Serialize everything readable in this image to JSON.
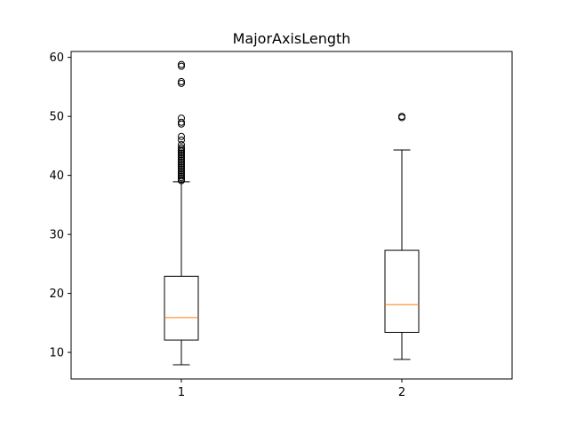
{
  "chart_data": {
    "type": "box",
    "title": "MajorAxisLength",
    "xlabel": "",
    "ylabel": "",
    "categories": [
      "1",
      "2"
    ],
    "ylim": [
      5.5,
      61
    ],
    "yticks": [
      10,
      20,
      30,
      40,
      50,
      60
    ],
    "grid": false,
    "boxes": [
      {
        "category": "1",
        "whisker_low": 7.9,
        "q1": 12.1,
        "median": 15.9,
        "q3": 22.9,
        "whisker_high": 38.9,
        "outliers": [
          39.1,
          39.3,
          39.6,
          39.9,
          40.2,
          40.5,
          40.8,
          41.1,
          41.4,
          41.7,
          42.0,
          42.3,
          42.6,
          42.9,
          43.2,
          43.5,
          43.8,
          44.1,
          44.4,
          44.7,
          45.2,
          46.0,
          46.6,
          48.7,
          49.0,
          49.7,
          55.6,
          55.9,
          58.5,
          58.8
        ]
      },
      {
        "category": "2",
        "whisker_low": 8.8,
        "q1": 13.4,
        "median": 18.1,
        "q3": 27.3,
        "whisker_high": 44.3,
        "outliers": [
          49.8,
          50.0
        ]
      }
    ],
    "colors": {
      "box": "#000000",
      "median": "#ff7f0e",
      "outlier": "#000000"
    }
  }
}
